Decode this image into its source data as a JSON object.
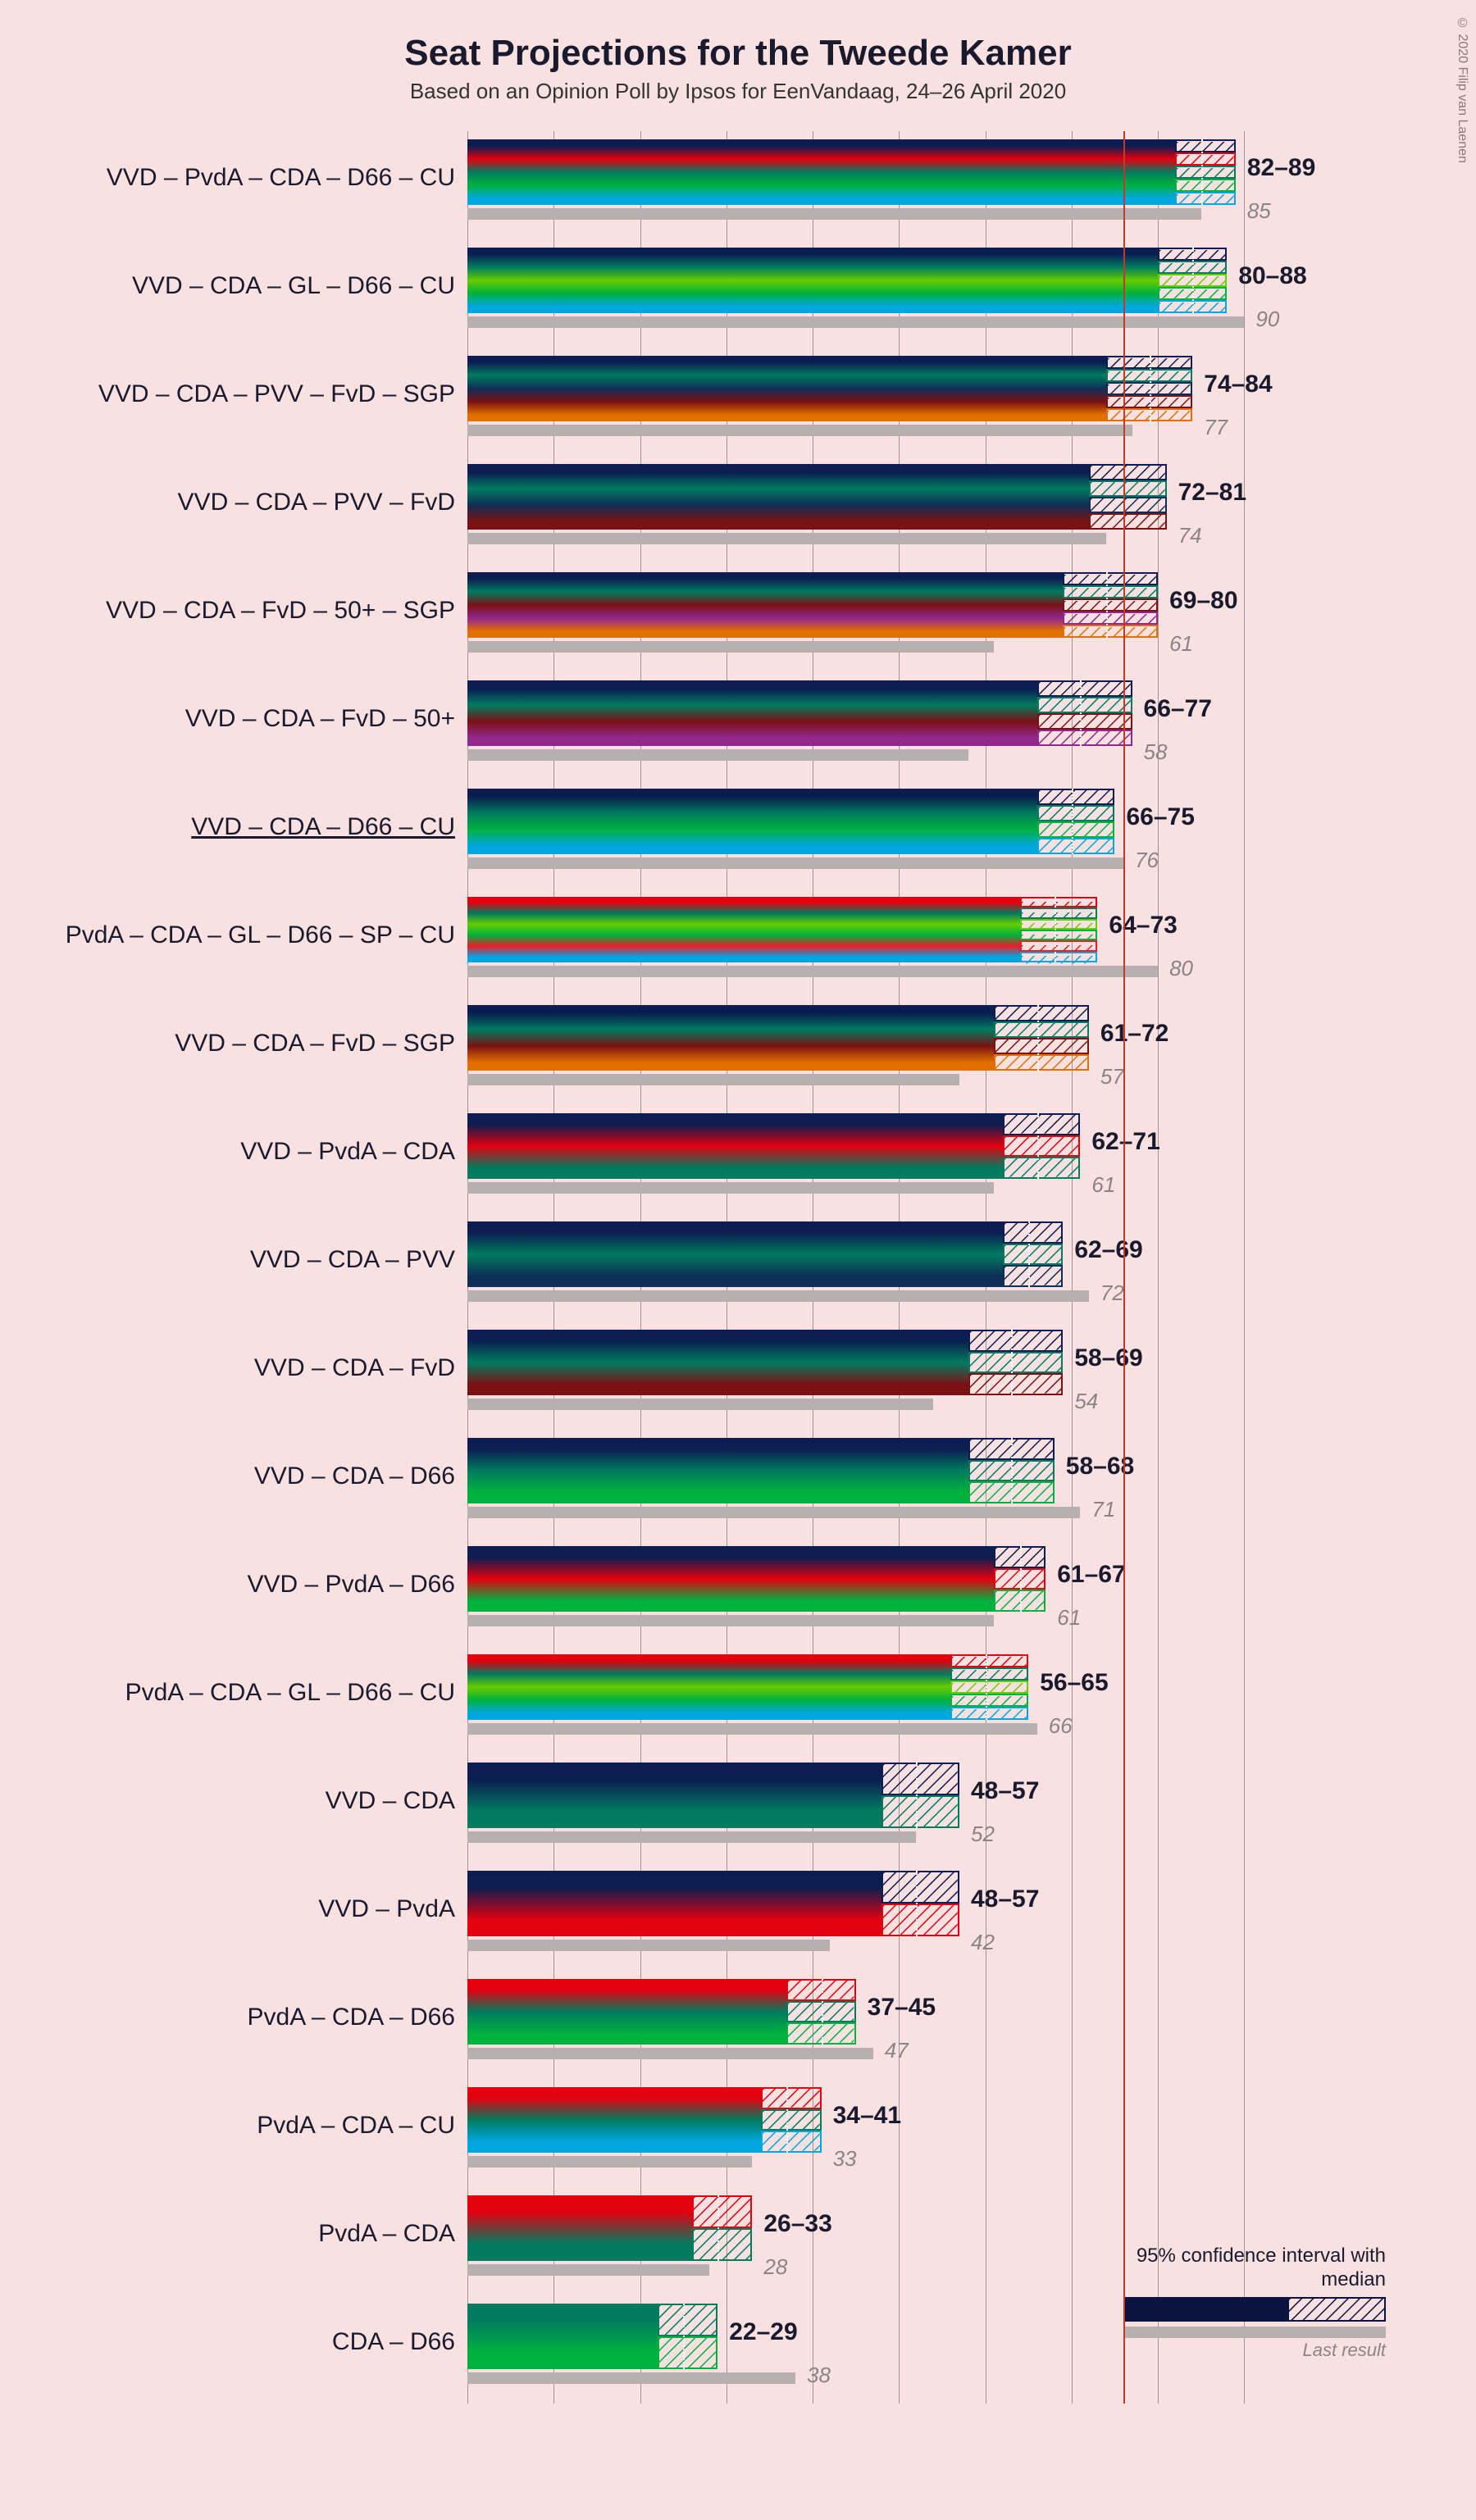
{
  "title": "Seat Projections for the Tweede Kamer",
  "subtitle": "Based on an Opinion Poll by Ipsos for EenVandaag, 24–26 April 2020",
  "copyright": "© 2020 Filip van Laenen",
  "chart": {
    "type": "stacked-horizontal-bar-with-ci",
    "xmax": 95,
    "xgrid_step": 10,
    "majority": 76,
    "background_color": "#f9e1e1",
    "gridline_color": "#555555",
    "majority_line_color": "#c0392b",
    "last_result_color": "#b8b0b0",
    "value_font_size": 30,
    "label_font_size": 30,
    "title_font_size": 44,
    "subtitle_font_size": 26,
    "party_colors": {
      "VVD": "#0b1d51",
      "PvdA": "#e3000f",
      "CDA": "#007b5f",
      "D66": "#00b13e",
      "CU": "#00a7e1",
      "GL": "#66cc00",
      "PVV": "#0f2e57",
      "FvD": "#7b1113",
      "SGP": "#e17000",
      "50+": "#92278f",
      "SP": "#ee1c25"
    }
  },
  "legend": {
    "ci_label": "95% confidence interval\nwith median",
    "last_label": "Last result"
  },
  "rows": [
    {
      "label": "VVD – PvdA – CDA – D66 – CU",
      "parties": [
        "VVD",
        "PvdA",
        "CDA",
        "D66",
        "CU"
      ],
      "low": 82,
      "high": 89,
      "median": 85,
      "last": 85,
      "underlined": false
    },
    {
      "label": "VVD – CDA – GL – D66 – CU",
      "parties": [
        "VVD",
        "CDA",
        "GL",
        "D66",
        "CU"
      ],
      "low": 80,
      "high": 88,
      "median": 84,
      "last": 90,
      "underlined": false
    },
    {
      "label": "VVD – CDA – PVV – FvD – SGP",
      "parties": [
        "VVD",
        "CDA",
        "PVV",
        "FvD",
        "SGP"
      ],
      "low": 74,
      "high": 84,
      "median": 79,
      "last": 77,
      "underlined": false
    },
    {
      "label": "VVD – CDA – PVV – FvD",
      "parties": [
        "VVD",
        "CDA",
        "PVV",
        "FvD"
      ],
      "low": 72,
      "high": 81,
      "median": 76,
      "last": 74,
      "underlined": false
    },
    {
      "label": "VVD – CDA – FvD – 50+ – SGP",
      "parties": [
        "VVD",
        "CDA",
        "FvD",
        "50+",
        "SGP"
      ],
      "low": 69,
      "high": 80,
      "median": 74,
      "last": 61,
      "underlined": false
    },
    {
      "label": "VVD – CDA – FvD – 50+",
      "parties": [
        "VVD",
        "CDA",
        "FvD",
        "50+"
      ],
      "low": 66,
      "high": 77,
      "median": 71,
      "last": 58,
      "underlined": false
    },
    {
      "label": "VVD – CDA – D66 – CU",
      "parties": [
        "VVD",
        "CDA",
        "D66",
        "CU"
      ],
      "low": 66,
      "high": 75,
      "median": 70,
      "last": 76,
      "underlined": true
    },
    {
      "label": "PvdA – CDA – GL – D66 – SP – CU",
      "parties": [
        "PvdA",
        "CDA",
        "GL",
        "D66",
        "SP",
        "CU"
      ],
      "low": 64,
      "high": 73,
      "median": 68,
      "last": 80,
      "underlined": false
    },
    {
      "label": "VVD – CDA – FvD – SGP",
      "parties": [
        "VVD",
        "CDA",
        "FvD",
        "SGP"
      ],
      "low": 61,
      "high": 72,
      "median": 66,
      "last": 57,
      "underlined": false
    },
    {
      "label": "VVD – PvdA – CDA",
      "parties": [
        "VVD",
        "PvdA",
        "CDA"
      ],
      "low": 62,
      "high": 71,
      "median": 66,
      "last": 61,
      "underlined": false
    },
    {
      "label": "VVD – CDA – PVV",
      "parties": [
        "VVD",
        "CDA",
        "PVV"
      ],
      "low": 62,
      "high": 69,
      "median": 65,
      "last": 72,
      "underlined": false
    },
    {
      "label": "VVD – CDA – FvD",
      "parties": [
        "VVD",
        "CDA",
        "FvD"
      ],
      "low": 58,
      "high": 69,
      "median": 63,
      "last": 54,
      "underlined": false
    },
    {
      "label": "VVD – CDA – D66",
      "parties": [
        "VVD",
        "CDA",
        "D66"
      ],
      "low": 58,
      "high": 68,
      "median": 63,
      "last": 71,
      "underlined": false
    },
    {
      "label": "VVD – PvdA – D66",
      "parties": [
        "VVD",
        "PvdA",
        "D66"
      ],
      "low": 61,
      "high": 67,
      "median": 64,
      "last": 61,
      "underlined": false
    },
    {
      "label": "PvdA – CDA – GL – D66 – CU",
      "parties": [
        "PvdA",
        "CDA",
        "GL",
        "D66",
        "CU"
      ],
      "low": 56,
      "high": 65,
      "median": 60,
      "last": 66,
      "underlined": false
    },
    {
      "label": "VVD – CDA",
      "parties": [
        "VVD",
        "CDA"
      ],
      "low": 48,
      "high": 57,
      "median": 52,
      "last": 52,
      "underlined": false
    },
    {
      "label": "VVD – PvdA",
      "parties": [
        "VVD",
        "PvdA"
      ],
      "low": 48,
      "high": 57,
      "median": 52,
      "last": 42,
      "underlined": false
    },
    {
      "label": "PvdA – CDA – D66",
      "parties": [
        "PvdA",
        "CDA",
        "D66"
      ],
      "low": 37,
      "high": 45,
      "median": 41,
      "last": 47,
      "underlined": false
    },
    {
      "label": "PvdA – CDA – CU",
      "parties": [
        "PvdA",
        "CDA",
        "CU"
      ],
      "low": 34,
      "high": 41,
      "median": 37,
      "last": 33,
      "underlined": false
    },
    {
      "label": "PvdA – CDA",
      "parties": [
        "PvdA",
        "CDA"
      ],
      "low": 26,
      "high": 33,
      "median": 29,
      "last": 28,
      "underlined": false
    },
    {
      "label": "CDA – D66",
      "parties": [
        "CDA",
        "D66"
      ],
      "low": 22,
      "high": 29,
      "median": 25,
      "last": 38,
      "underlined": false
    }
  ]
}
